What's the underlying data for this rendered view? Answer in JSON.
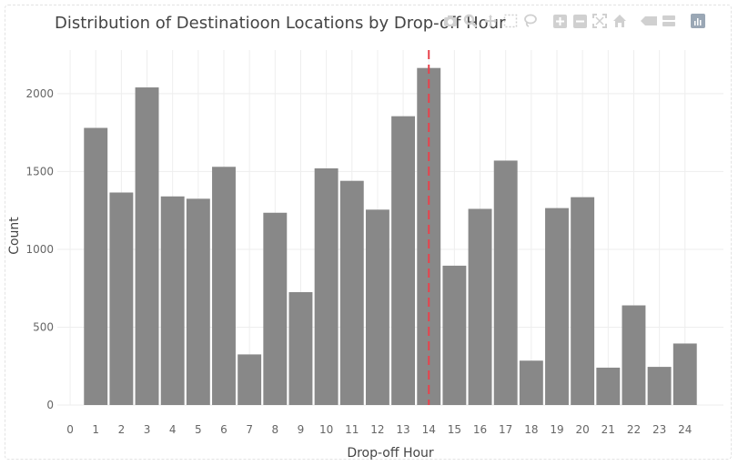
{
  "chart_data": {
    "type": "bar",
    "title": "Distribution of Destinatioon Locations by Drop-off Hour",
    "xlabel": "Drop-off Hour",
    "ylabel": "Count",
    "xlim": [
      -0.5,
      25.5
    ],
    "ylim": [
      0,
      2280
    ],
    "x_ticks": [
      0,
      1,
      2,
      3,
      4,
      5,
      6,
      7,
      8,
      9,
      10,
      11,
      12,
      13,
      14,
      15,
      16,
      17,
      18,
      19,
      20,
      21,
      22,
      23,
      24
    ],
    "y_ticks": [
      0,
      500,
      1000,
      1500,
      2000
    ],
    "x": [
      1,
      2,
      3,
      4,
      5,
      6,
      7,
      8,
      9,
      10,
      11,
      12,
      13,
      14,
      15,
      16,
      17,
      18,
      19,
      20,
      21,
      22,
      23,
      24
    ],
    "values": [
      1780,
      1365,
      2040,
      1340,
      1325,
      1530,
      325,
      1235,
      725,
      1520,
      1440,
      1255,
      1855,
      2165,
      895,
      1260,
      1570,
      285,
      1265,
      1335,
      240,
      640,
      245,
      395
    ],
    "bar_color": "#888888",
    "reference_line": {
      "x": 14,
      "color": "#e8424c",
      "style": "dashed"
    },
    "grid": true,
    "legend": "none"
  },
  "modebar": {
    "icons": [
      "camera-icon",
      "zoom-icon",
      "pan-icon",
      "box-select-icon",
      "lasso-icon",
      "zoom-in-icon",
      "zoom-out-icon",
      "autoscale-icon",
      "reset-axes-icon",
      "hover-closest-icon",
      "hover-compare-icon",
      "plotly-logo-icon"
    ],
    "icon_color": "#d0d0d0"
  }
}
